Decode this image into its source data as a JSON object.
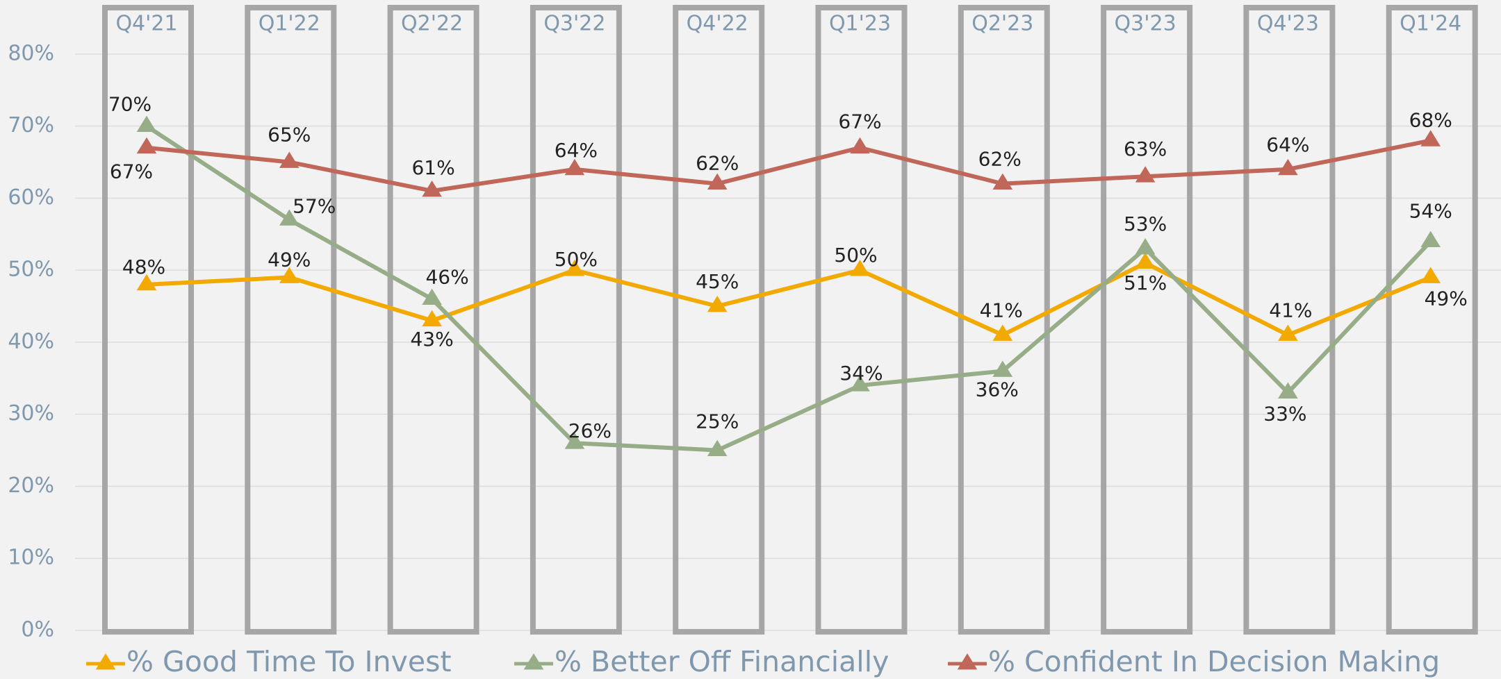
{
  "chart_data": {
    "type": "line",
    "categories": [
      "Q4'21",
      "Q1'22",
      "Q2'22",
      "Q3'22",
      "Q4'22",
      "Q1'23",
      "Q2'23",
      "Q3'23",
      "Q4'23",
      "Q1'24"
    ],
    "series": [
      {
        "name": "% Good Time To Invest",
        "color": "#F2A900",
        "values": [
          48,
          49,
          43,
          50,
          45,
          50,
          41,
          51,
          41,
          49
        ],
        "value_labels": [
          "48%",
          "49%",
          "43%",
          "50%",
          "45%",
          "50%",
          "41%",
          "51%",
          "41%",
          "49%"
        ]
      },
      {
        "name": "% Better Off Financially",
        "color": "#97AD87",
        "values": [
          70,
          57,
          46,
          26,
          25,
          34,
          36,
          53,
          33,
          54
        ],
        "value_labels": [
          "70%",
          "57%",
          "46%",
          "26%",
          "25%",
          "34%",
          "36%",
          "53%",
          "33%",
          "54%"
        ]
      },
      {
        "name": "% Confident In Decision Making",
        "color": "#C0675A",
        "values": [
          67,
          65,
          61,
          64,
          62,
          67,
          62,
          63,
          64,
          68
        ],
        "value_labels": [
          "67%",
          "65%",
          "61%",
          "64%",
          "62%",
          "67%",
          "62%",
          "63%",
          "64%",
          "68%"
        ]
      }
    ],
    "ylim": [
      0,
      87.5
    ],
    "yticks": [
      {
        "value": 0,
        "label": "0%"
      },
      {
        "value": 10,
        "label": "10%"
      },
      {
        "value": 20,
        "label": "20%"
      },
      {
        "value": 30,
        "label": "30%"
      },
      {
        "value": 40,
        "label": "40%"
      },
      {
        "value": 50,
        "label": "50%"
      },
      {
        "value": 60,
        "label": "60%"
      },
      {
        "value": 70,
        "label": "70%"
      },
      {
        "value": 80,
        "label": "80%"
      }
    ],
    "grid": true,
    "legend": "bottom"
  }
}
